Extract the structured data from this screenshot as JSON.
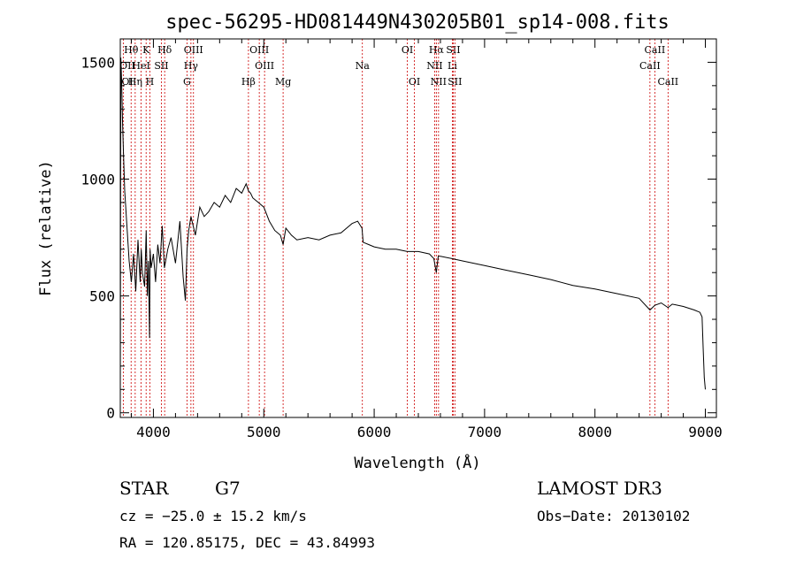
{
  "chart_data": {
    "type": "line",
    "title": "spec-56295-HD081449N430205B01_sp14-008.fits",
    "xlabel": "Wavelength (Å)",
    "ylabel": "Flux (relative)",
    "xlim": [
      3700,
      9100
    ],
    "ylim": [
      -20,
      1600
    ],
    "xticks": [
      4000,
      5000,
      6000,
      7000,
      8000,
      9000
    ],
    "yticks": [
      0,
      500,
      1000,
      1500
    ],
    "series": [
      {
        "name": "flux",
        "x": [
          3700,
          3705,
          3712,
          3720,
          3730,
          3740,
          3760,
          3780,
          3800,
          3820,
          3840,
          3860,
          3880,
          3890,
          3900,
          3920,
          3935,
          3945,
          3955,
          3965,
          3970,
          3980,
          4000,
          4020,
          4040,
          4060,
          4080,
          4100,
          4130,
          4160,
          4200,
          4240,
          4270,
          4290,
          4305,
          4320,
          4340,
          4380,
          4420,
          4460,
          4500,
          4550,
          4600,
          4650,
          4700,
          4750,
          4800,
          4840,
          4861,
          4880,
          4900,
          4950,
          5000,
          5050,
          5100,
          5150,
          5175,
          5200,
          5250,
          5300,
          5400,
          5500,
          5600,
          5700,
          5800,
          5850,
          5890,
          5900,
          5950,
          6000,
          6100,
          6200,
          6300,
          6400,
          6500,
          6540,
          6563,
          6580,
          6600,
          6700,
          6800,
          7000,
          7200,
          7400,
          7600,
          7800,
          8000,
          8200,
          8400,
          8498,
          8542,
          8600,
          8662,
          8700,
          8800,
          8900,
          8950,
          8970,
          8980,
          8990,
          9000
        ],
        "y": [
          40,
          1520,
          1420,
          1250,
          1100,
          950,
          800,
          650,
          560,
          680,
          520,
          740,
          560,
          700,
          600,
          540,
          780,
          500,
          650,
          320,
          700,
          620,
          680,
          560,
          720,
          640,
          800,
          620,
          700,
          750,
          640,
          820,
          580,
          480,
          700,
          780,
          840,
          760,
          880,
          840,
          860,
          900,
          880,
          930,
          900,
          960,
          940,
          980,
          950,
          940,
          920,
          900,
          880,
          820,
          780,
          760,
          720,
          790,
          760,
          740,
          750,
          740,
          760,
          770,
          810,
          820,
          790,
          730,
          720,
          710,
          700,
          700,
          690,
          690,
          680,
          660,
          600,
          670,
          670,
          660,
          650,
          630,
          610,
          590,
          570,
          545,
          530,
          510,
          490,
          440,
          460,
          470,
          450,
          465,
          455,
          440,
          430,
          410,
          280,
          150,
          100
        ]
      }
    ],
    "line_markers": [
      {
        "label": "Hθ",
        "wl": 3798,
        "row": 1
      },
      {
        "label": "K",
        "wl": 3934,
        "row": 1
      },
      {
        "label": "Hδ",
        "wl": 4102,
        "row": 1
      },
      {
        "label": "OIII",
        "wl": 4363,
        "row": 1
      },
      {
        "label": "OIII",
        "wl": 4959,
        "row": 1
      },
      {
        "label": "OI",
        "wl": 6300,
        "row": 1
      },
      {
        "label": "Hα",
        "wl": 6563,
        "row": 1
      },
      {
        "label": "SII",
        "wl": 6716,
        "row": 1
      },
      {
        "label": "CaII",
        "wl": 8542,
        "row": 1
      },
      {
        "label": "OII",
        "wl": 3727,
        "row": 2
      },
      {
        "label": "HeI",
        "wl": 3889,
        "row": 2
      },
      {
        "label": "SII",
        "wl": 4072,
        "row": 2
      },
      {
        "label": "Hγ",
        "wl": 4340,
        "row": 2
      },
      {
        "label": "OIII",
        "wl": 5007,
        "row": 2
      },
      {
        "label": "Na",
        "wl": 5893,
        "row": 2
      },
      {
        "label": "NII",
        "wl": 6548,
        "row": 2
      },
      {
        "label": "Li",
        "wl": 6708,
        "row": 2
      },
      {
        "label": "CaII",
        "wl": 8498,
        "row": 2
      },
      {
        "label": "OI",
        "wl": 3700,
        "row": 3
      },
      {
        "label": "Hη",
        "wl": 3835,
        "row": 3
      },
      {
        "label": "H",
        "wl": 3968,
        "row": 3
      },
      {
        "label": "G",
        "wl": 4304,
        "row": 3
      },
      {
        "label": "Hβ",
        "wl": 4861,
        "row": 3
      },
      {
        "label": "Mg",
        "wl": 5175,
        "row": 3
      },
      {
        "label": "OI",
        "wl": 6364,
        "row": 3
      },
      {
        "label": "NII",
        "wl": 6583,
        "row": 3
      },
      {
        "label": "SII",
        "wl": 6731,
        "row": 3
      },
      {
        "label": "CaII",
        "wl": 8662,
        "row": 3
      }
    ]
  },
  "info": {
    "object_class": "STAR",
    "subclass": "G7",
    "survey": "LAMOST DR3",
    "cz": "cz = −25.0 ± 15.2 km/s",
    "obs_date": "Obs−Date: 20130102",
    "coords": "RA = 120.85175, DEC =  43.84993"
  }
}
